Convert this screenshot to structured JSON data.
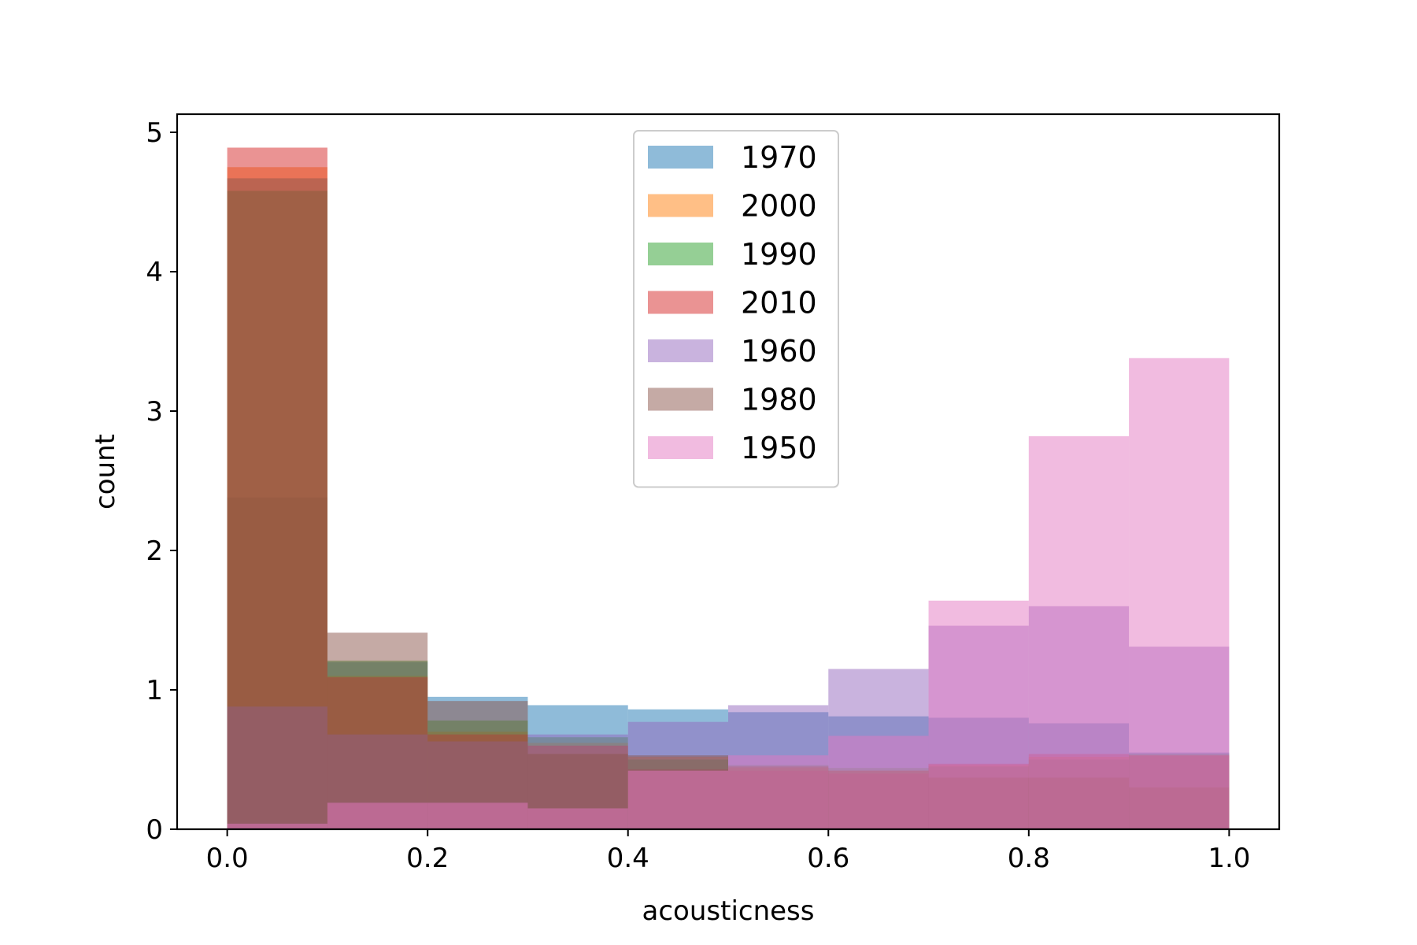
{
  "chart_data": {
    "type": "histogram",
    "xlabel": "acousticness",
    "ylabel": "count",
    "xlim": [
      -0.05,
      1.05
    ],
    "ylim": [
      0,
      5.13
    ],
    "xticks": [
      "0.0",
      "0.2",
      "0.4",
      "0.6",
      "0.8",
      "1.0"
    ],
    "yticks": [
      "0",
      "1",
      "2",
      "3",
      "4",
      "5"
    ],
    "bin_edges": [
      0.0,
      0.1,
      0.2,
      0.3,
      0.4,
      0.5,
      0.6,
      0.7,
      0.8,
      0.9,
      1.0
    ],
    "alpha": 0.5,
    "legend_position": "upper center",
    "series": [
      {
        "name": "1970",
        "color": "#1f77b4",
        "values": [
          2.38,
          1.2,
          0.95,
          0.89,
          0.86,
          0.84,
          0.81,
          0.8,
          0.76,
          0.55
        ]
      },
      {
        "name": "2000",
        "color": "#ff7f0e",
        "values": [
          4.75,
          1.1,
          0.7,
          0.62,
          0.52,
          0.44,
          0.42,
          0.46,
          0.52,
          0.53
        ]
      },
      {
        "name": "1990",
        "color": "#2ca02c",
        "values": [
          4.58,
          1.21,
          0.78,
          0.66,
          0.5,
          0.46,
          0.44,
          0.45,
          0.5,
          0.54
        ]
      },
      {
        "name": "2010",
        "color": "#d62728",
        "values": [
          4.89,
          1.09,
          0.68,
          0.6,
          0.43,
          0.42,
          0.4,
          0.47,
          0.54,
          0.53
        ]
      },
      {
        "name": "1960",
        "color": "#9467bd",
        "values": [
          0.88,
          0.68,
          0.63,
          0.68,
          0.77,
          0.89,
          1.15,
          1.46,
          1.6,
          1.31
        ]
      },
      {
        "name": "1980",
        "color": "#8c564b",
        "values": [
          4.67,
          1.41,
          0.92,
          0.54,
          0.53,
          0.45,
          0.42,
          0.37,
          0.37,
          0.3
        ]
      },
      {
        "name": "1950",
        "color": "#e377c2",
        "values": [
          0.04,
          0.19,
          0.19,
          0.15,
          0.42,
          0.53,
          0.67,
          1.64,
          2.82,
          3.38
        ]
      }
    ]
  }
}
